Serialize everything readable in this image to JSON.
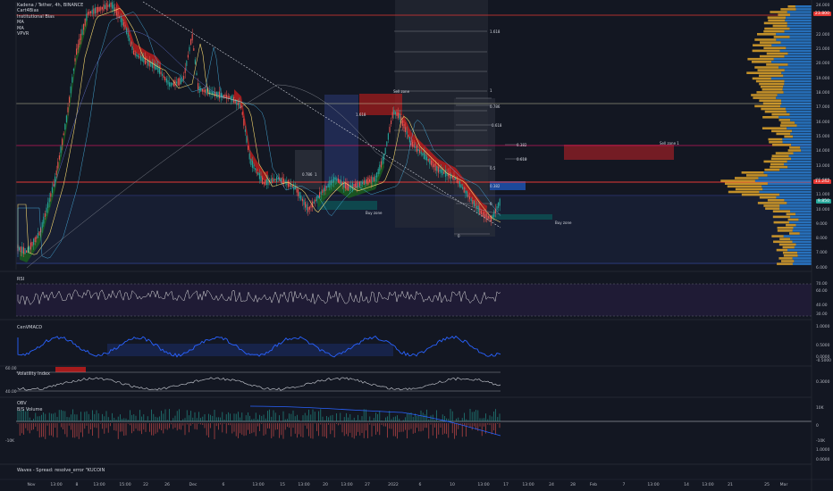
{
  "main_legend": {
    "symbol": "Kadena / Tether, 4h, BINANCE",
    "indicators": [
      "Cart4Bias",
      "Institutional Bias",
      "MA",
      "MA",
      "VPVR"
    ]
  },
  "panes": {
    "rsi_label": "RSI",
    "cci_label": "CenVMACD",
    "vol_label": "Volatility Index",
    "obv_label": "OBV",
    "bv_label": "B/S Volume",
    "bottom_label": "Waves - Spread: resolve_error \"KUCOIN"
  },
  "price_axis": {
    "ticks": [
      "24.000",
      "22.000",
      "21.000",
      "20.000",
      "19.000",
      "18.000",
      "17.000",
      "16.000",
      "15.000",
      "14.000",
      "13.000",
      "12.000",
      "11.000",
      "10.000",
      "9.000",
      "8.000",
      "7.000",
      "6.000"
    ],
    "top_tag": "23.800",
    "current_tag": "11.242",
    "ohlc_tag": "9.850"
  },
  "rsi_axis": {
    "ticks": [
      "70.00",
      "60.00",
      "40.00",
      "30.00"
    ]
  },
  "cci_axis": {
    "ticks": [
      "1.0000",
      "0.5000",
      "0.0000",
      "-0.5000"
    ]
  },
  "vol_axis": {
    "ticks": [
      "0.3000"
    ],
    "left_ticks": [
      "60.00",
      "40.00"
    ]
  },
  "obv_axis": {
    "ticks": [
      "10K",
      "0",
      "-10K"
    ],
    "left_ticks": [
      "-10K"
    ]
  },
  "bottom_axis": {
    "ticks": [
      "1.0000",
      "0.0000"
    ]
  },
  "time_axis": {
    "ticks": [
      "Nov",
      "13:00",
      "8",
      "13:00",
      "15:00",
      "22",
      "26",
      "Dec",
      "6",
      "13:00",
      "15",
      "13:00",
      "20",
      "13:00",
      "27",
      "2022",
      "6",
      "10",
      "13:00",
      "17",
      "13:00",
      "24",
      "28",
      "Feb",
      "7",
      "13:00",
      "14",
      "13:00",
      "21",
      "25",
      "Mar"
    ]
  },
  "annotations": {
    "fib_labels": [
      "1.618",
      "1",
      "0.786",
      "0.618",
      "0.5",
      "0.382",
      "0",
      "1.618",
      "1",
      "0.786",
      "0.618",
      "0.382",
      "0"
    ],
    "sell_zone_1": "Sell zone",
    "sell_zone_2": "Sell zone 1",
    "buy_zone_1": "Buy zone",
    "buy_zone_2": "Buy zone"
  },
  "colors": {
    "background": "#131722",
    "up_candle": "#26a69a",
    "down_candle": "#ef5350",
    "green_band": "#1b5e20",
    "red_band": "#b71c1c",
    "vpvr_blue": "#2a7fd4",
    "vpvr_orange": "#e0a42a",
    "cci_line": "#2962ff",
    "red_level": "#e53935"
  },
  "chart_data": {
    "type": "candlestick",
    "title": "Kadena / Tether, 4h, BINANCE",
    "ylim": [
      5.8,
      24.2
    ],
    "close_path_x": [
      "Nov",
      "8",
      "22",
      "Dec",
      "6",
      "15",
      "20",
      "27",
      "2022",
      "6",
      "10"
    ],
    "close_path_y": [
      6.0,
      20.5,
      17.0,
      14.5,
      11.0,
      9.8,
      10.8,
      15.5,
      12.5,
      9.5,
      11.2
    ],
    "levels": [
      23.8,
      16.5,
      14.0,
      11.242,
      10.5,
      6.2
    ],
    "rsi_range": [
      30,
      70
    ]
  }
}
